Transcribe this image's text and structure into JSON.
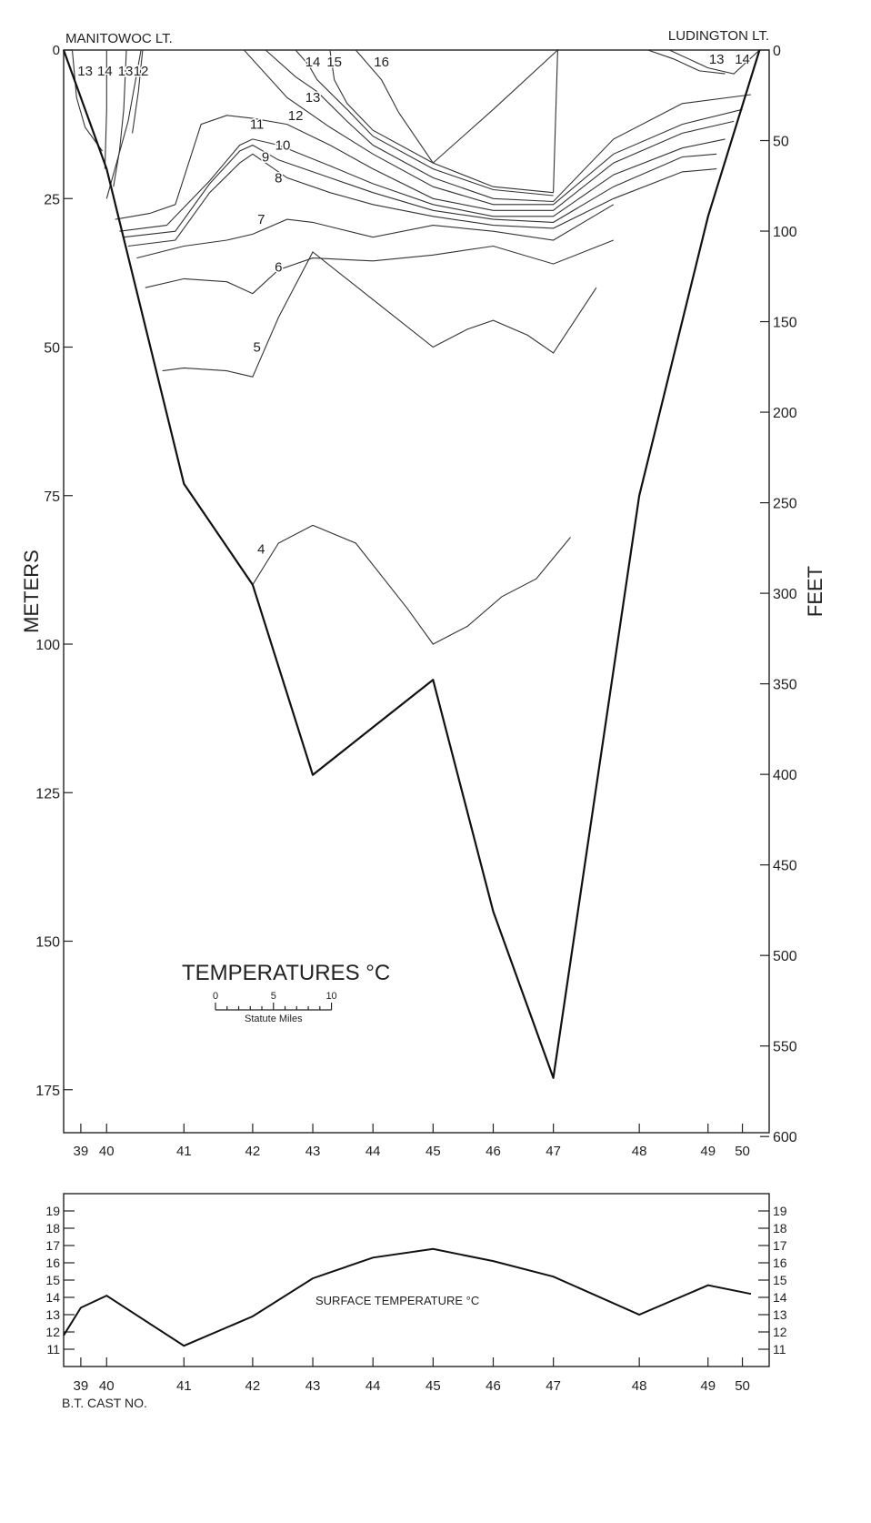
{
  "chart_data": [
    {
      "type": "line",
      "title": "TEMPERATURES °C",
      "left_station_label": "MANITOWOC LT.",
      "right_station_label": "LUDINGTON LT.",
      "ylabel_left": "METERS",
      "ylabel_right": "FEET",
      "xlabel": "",
      "scale_bar": {
        "ticks": [
          "0",
          "5",
          "10"
        ],
        "label": "Statute Miles",
        "max_miles": 10
      },
      "ylim_meters": [
        0,
        185
      ],
      "ylim_feet": [
        0,
        600
      ],
      "y_ticks_meters": [
        "0",
        "25",
        "50",
        "75",
        "100",
        "125",
        "150",
        "175"
      ],
      "y_ticks_feet": [
        "0",
        "50",
        "100",
        "150",
        "200",
        "250",
        "300",
        "350",
        "400",
        "450",
        "500",
        "550",
        "600"
      ],
      "x_tick_labels": [
        "39",
        "40",
        "41",
        "42",
        "43",
        "44",
        "45",
        "46",
        "47",
        "48",
        "49",
        "50"
      ],
      "x_tick_positions_miles": [
        2,
        5,
        14,
        22,
        29,
        36,
        43,
        50,
        57,
        67,
        75,
        79
      ],
      "bottom_profile": {
        "miles": [
          0,
          5,
          14,
          22,
          29,
          36,
          43,
          50,
          57,
          67,
          75,
          81
        ],
        "depth_m": [
          0,
          20,
          73,
          90,
          122,
          114,
          106,
          145,
          173,
          75,
          28,
          0
        ]
      },
      "isotherms": [
        {
          "label": "4",
          "label_at": [
            23,
            84
          ],
          "miles": [
            22,
            25,
            29,
            34,
            40,
            43,
            47,
            51,
            55,
            59
          ],
          "depth_m": [
            90,
            83,
            80,
            83,
            94,
            100,
            97,
            92,
            89,
            82
          ]
        },
        {
          "label": "5",
          "label_at": [
            22.5,
            50
          ],
          "miles": [
            11.5,
            14,
            19,
            22,
            25,
            29,
            36,
            43,
            47,
            50,
            54,
            57,
            62
          ],
          "depth_m": [
            54,
            53.5,
            54,
            55,
            45,
            34,
            42,
            50,
            47,
            45.5,
            48,
            51,
            40
          ]
        },
        {
          "label": "6",
          "label_at": [
            25,
            36.5
          ],
          "miles": [
            9.5,
            14,
            19,
            22,
            25,
            29,
            36,
            43,
            50,
            57,
            64
          ],
          "depth_m": [
            40,
            38.5,
            39,
            41,
            37,
            35,
            35.5,
            34.5,
            33,
            36,
            32
          ]
        },
        {
          "label": "7",
          "label_at": [
            23,
            28.5
          ],
          "miles": [
            8.5,
            14,
            19,
            22,
            26,
            29,
            36,
            43,
            50,
            57,
            64
          ],
          "depth_m": [
            35,
            33,
            32,
            31,
            28.5,
            29,
            31.5,
            29.5,
            30.5,
            32,
            26
          ]
        },
        {
          "label": "8",
          "label_at": [
            25,
            21.5
          ],
          "miles": [
            7.5,
            13,
            17,
            20.5,
            22,
            26,
            31,
            36,
            43,
            50,
            57,
            64,
            72,
            76
          ],
          "depth_m": [
            33,
            32,
            24,
            19,
            17.5,
            21.5,
            24,
            26,
            28,
            29.5,
            30,
            25,
            20.5,
            20
          ]
        },
        {
          "label": "9",
          "label_at": [
            23.5,
            18
          ],
          "miles": [
            7,
            13,
            17,
            20.5,
            22,
            25,
            31,
            36,
            43,
            50,
            57,
            64,
            72,
            76
          ],
          "depth_m": [
            31.5,
            30.5,
            22.5,
            17,
            16,
            18.5,
            21.5,
            24,
            27,
            28.5,
            29,
            23,
            18,
            17.5
          ]
        },
        {
          "label": "10",
          "label_at": [
            25.5,
            16
          ],
          "miles": [
            6.5,
            12,
            17,
            20.5,
            22,
            25,
            31,
            36,
            43,
            50,
            57,
            64,
            72,
            77
          ],
          "depth_m": [
            30.5,
            29.5,
            22,
            16,
            15,
            16,
            19.5,
            22.5,
            26,
            28,
            28,
            21,
            16.5,
            15
          ]
        },
        {
          "label": "11",
          "label_at": [
            22.5,
            12.5
          ],
          "miles": [
            6,
            10,
            13,
            16,
            19,
            22,
            26,
            31,
            36,
            43,
            50,
            57,
            64,
            72,
            78
          ],
          "depth_m": [
            28.5,
            27.5,
            26,
            12.5,
            11,
            11.5,
            12.5,
            16,
            20,
            25,
            27,
            27,
            19,
            14,
            12
          ]
        },
        {
          "label": "12",
          "label_at": [
            27,
            11
          ],
          "miles": [
            5,
            7.5,
            9,
            21,
            26,
            31,
            36,
            43,
            50,
            57,
            64,
            72,
            79
          ],
          "depth_m": [
            25,
            12,
            0,
            0,
            8,
            13,
            17.5,
            23,
            26,
            26,
            17.5,
            12.5,
            10
          ]
        },
        {
          "label": "13",
          "label_at": [
            29,
            8
          ],
          "miles": [
            23.5,
            27,
            29.5,
            33,
            36,
            43,
            50,
            57,
            64,
            72,
            80
          ],
          "depth_m": [
            0,
            4.5,
            7,
            12,
            16,
            21.5,
            25,
            25.5,
            15,
            9,
            7.5
          ]
        },
        {
          "label": "14",
          "label_at": [
            29,
            2
          ],
          "miles": [
            27,
            28.5,
            29.5,
            33,
            36,
            43,
            50,
            57
          ],
          "depth_m": [
            0,
            2.5,
            5,
            10,
            14.5,
            20,
            23.5,
            24.5
          ]
        },
        {
          "label": "15",
          "label_at": [
            31.5,
            2
          ],
          "miles": [
            31,
            31.5,
            33,
            36,
            43,
            50,
            57
          ],
          "depth_m": [
            0,
            5,
            9,
            13.5,
            19,
            23,
            24
          ]
        },
        {
          "label": "16",
          "label_at": [
            37,
            2
          ],
          "miles": [
            34,
            37,
            39,
            43,
            50,
            57.5,
            57
          ],
          "depth_m": [
            0,
            5,
            10.5,
            19,
            10,
            0,
            24
          ]
        },
        {
          "label": "13",
          "label_at": [
            2.5,
            3.5
          ],
          "miles": [
            1,
            1.5,
            2.5,
            4.5
          ],
          "depth_m": [
            0,
            8,
            13,
            17
          ]
        },
        {
          "label": "14",
          "label_at": [
            4.8,
            3.5
          ],
          "miles": [
            5,
            5,
            4.8
          ],
          "depth_m": [
            0,
            10,
            20
          ]
        },
        {
          "label": "13",
          "label_at": [
            7.2,
            3.5
          ],
          "miles": [
            7.3,
            7,
            6.5,
            5.8
          ],
          "depth_m": [
            0,
            10,
            17,
            23
          ]
        },
        {
          "label": "12",
          "label_at": [
            9,
            3.5
          ],
          "miles": [
            9.2,
            8.7,
            8
          ],
          "depth_m": [
            0,
            7,
            14
          ]
        },
        {
          "label": "13",
          "label_at": [
            76,
            1.5
          ],
          "miles": [
            68,
            71,
            74,
            77
          ],
          "depth_m": [
            0,
            1.5,
            3.5,
            4
          ]
        },
        {
          "label": "14",
          "label_at": [
            79,
            1.5
          ],
          "miles": [
            70.5,
            75,
            78,
            81
          ],
          "depth_m": [
            0,
            3,
            4,
            0
          ]
        }
      ]
    },
    {
      "type": "line",
      "title": "SURFACE TEMPERATURE °C",
      "xlabel": "B.T. CAST NO.",
      "ylabel": "",
      "ylim": [
        10,
        20
      ],
      "y_ticks": [
        "19",
        "18",
        "17",
        "16",
        "15",
        "14",
        "13",
        "12",
        "11"
      ],
      "x_tick_labels": [
        "39",
        "40",
        "41",
        "42",
        "43",
        "44",
        "45",
        "46",
        "47",
        "48",
        "49",
        "50"
      ],
      "x_tick_positions_miles": [
        2,
        5,
        14,
        22,
        29,
        36,
        43,
        50,
        57,
        67,
        75,
        79
      ],
      "series": [
        {
          "miles": [
            0,
            2,
            5,
            14,
            22,
            29,
            36,
            43,
            50,
            57,
            67,
            75,
            80
          ],
          "values": [
            11.8,
            13.4,
            14.1,
            11.2,
            12.9,
            15.1,
            16.3,
            16.8,
            16.1,
            15.2,
            13.0,
            14.7,
            14.2
          ]
        }
      ]
    }
  ]
}
